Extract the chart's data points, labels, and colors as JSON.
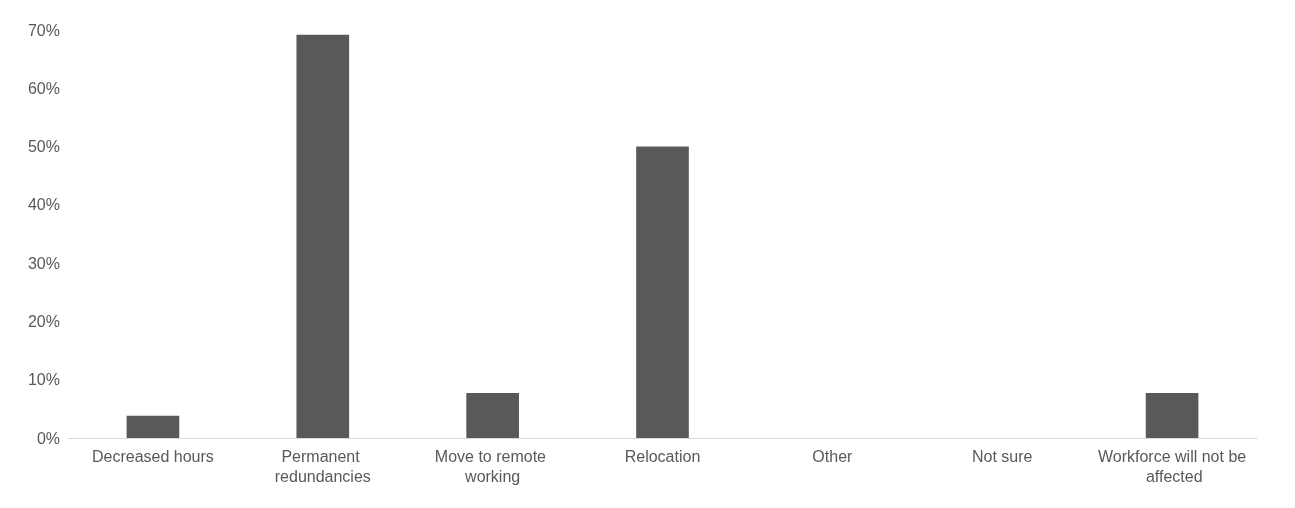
{
  "chart_data": {
    "type": "bar",
    "categories": [
      "Decreased hours",
      "Permanent redundancies",
      "Move to remote working",
      "Relocation",
      "Other",
      "Not sure",
      "Workforce will not be affected"
    ],
    "values": [
      3.8,
      69.2,
      7.7,
      50,
      0,
      0,
      7.7
    ],
    "color": "#595959",
    "ylim": [
      0,
      70
    ],
    "yticks": [
      {
        "value": 0,
        "label": "0%"
      },
      {
        "value": 10,
        "label": "10%"
      },
      {
        "value": 20,
        "label": "20%"
      },
      {
        "value": 30,
        "label": "30%"
      },
      {
        "value": 40,
        "label": "40%"
      },
      {
        "value": 50,
        "label": "50%"
      },
      {
        "value": 60,
        "label": "60%"
      },
      {
        "value": 70,
        "label": "70%"
      }
    ]
  }
}
